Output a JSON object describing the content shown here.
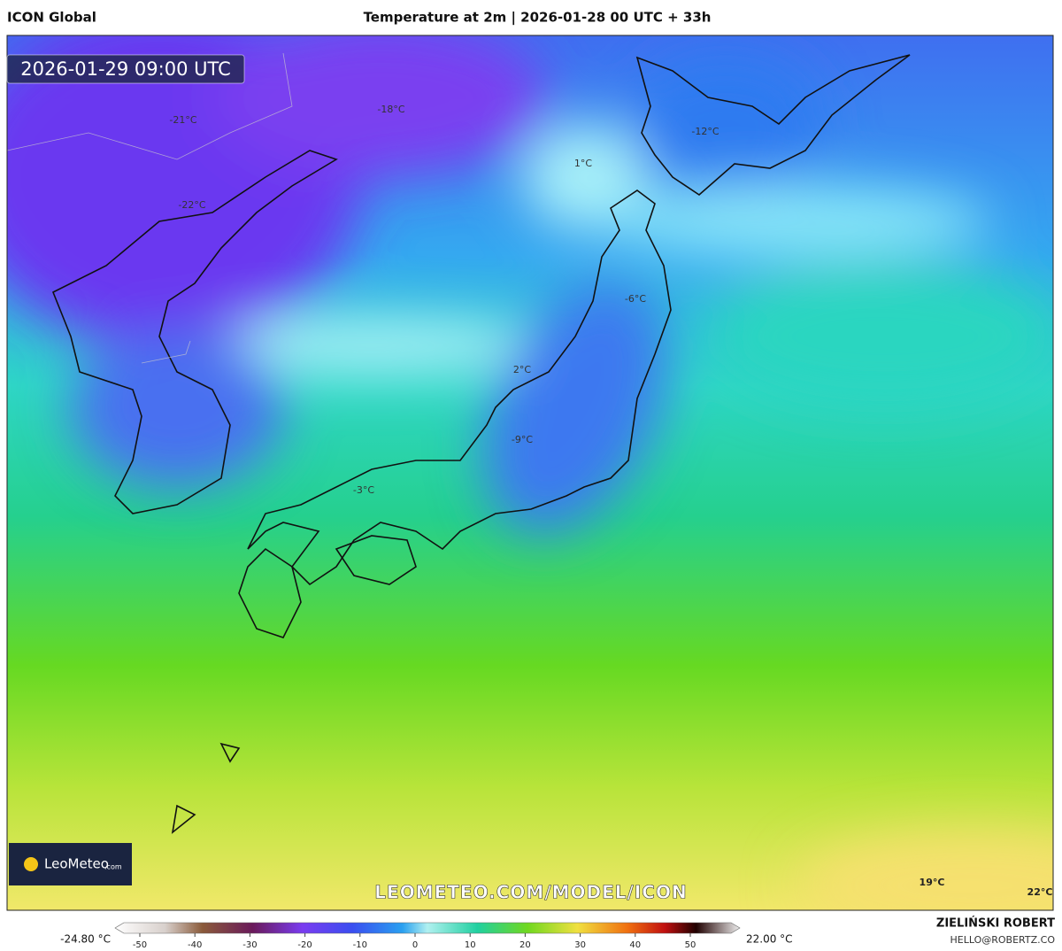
{
  "header": {
    "model": "ICON Global",
    "title": "Temperature at 2m | 2026-01-28 00 UTC + 33h"
  },
  "timestamp": "2026-01-29 09:00 UTC",
  "map_labels": [
    "-21°C",
    "-18°C",
    "-22°C",
    "-12°C",
    "1°C",
    "-6°C",
    "2°C",
    "-9°C",
    "-3°C",
    "19°C",
    "22°C"
  ],
  "logo": {
    "name": "LeoMeteo",
    "suffix": ".com"
  },
  "watermark": "LEOMETEO.COM/MODEL/ICON",
  "colorbar": {
    "min_label": "-24.80 °C",
    "max_label": "22.00 °C",
    "ticks": [
      -50,
      -40,
      -30,
      -20,
      -10,
      0,
      10,
      20,
      30,
      40,
      50
    ]
  },
  "credit": {
    "author": "ZIELIŃSKI ROBERT",
    "email": "HELLO@ROBERTZ.CO"
  }
}
